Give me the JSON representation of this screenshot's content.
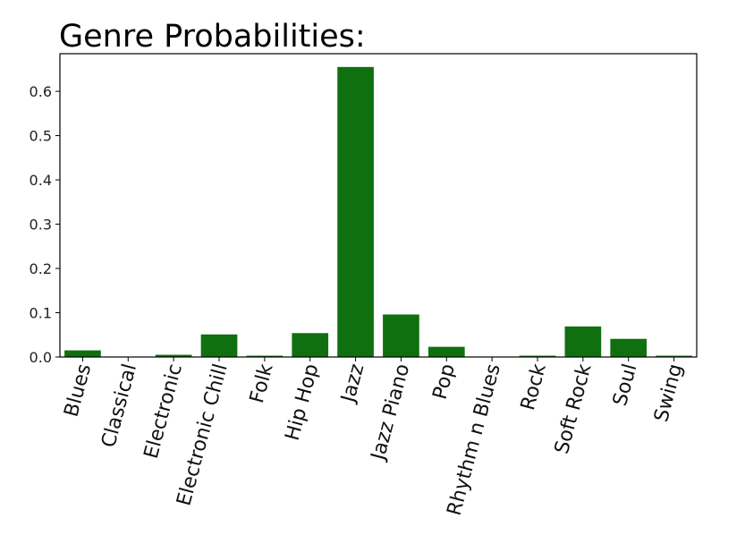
{
  "chart_data": {
    "type": "bar",
    "title": "Genre Probabilities:",
    "xlabel": "",
    "ylabel": "",
    "categories": [
      "Blues",
      "Classical",
      "Electronic",
      "Electronic Chill",
      "Folk",
      "Hip Hop",
      "Jazz",
      "Jazz Piano",
      "Pop",
      "Rhythm n Blues",
      "Rock",
      "Soft Rock",
      "Soul",
      "Swing"
    ],
    "values": [
      0.015,
      0.0,
      0.005,
      0.051,
      0.003,
      0.054,
      0.655,
      0.096,
      0.023,
      0.0,
      0.003,
      0.069,
      0.041,
      0.003
    ],
    "ylim": [
      0,
      0.685
    ],
    "yticks": [
      0.0,
      0.1,
      0.2,
      0.3,
      0.4,
      0.5,
      0.6
    ],
    "ytick_labels": [
      "0.0",
      "0.1",
      "0.2",
      "0.3",
      "0.4",
      "0.5",
      "0.6"
    ],
    "bar_color": "#107010",
    "grid": false,
    "legend": "none"
  }
}
